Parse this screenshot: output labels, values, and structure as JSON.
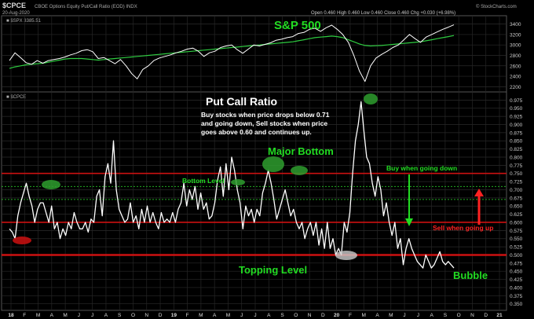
{
  "header": {
    "symbol": "$CPCE",
    "description": "CBOE Options Equity Put/Call Ratio (EOD)  INDX",
    "brand": "© StockCharts.com",
    "date": "20-Aug-2020",
    "ohlc": "Open 0.460  High 0.460  Low 0.460  Close 0.460  Chg +0.030 (+6.98%)",
    "spx_readout": "■ $SPX 3385.51",
    "cpce_label": "■ $CPCE"
  },
  "annotations": {
    "sp500": "S&P 500",
    "title": "Put Call Ratio",
    "subtitle_lines": [
      "Buy stocks when price drops below 0.71",
      "and going down, Sell stocks when price",
      "goes above 0.60 and continues up."
    ],
    "major_bottom": "Major Bottom",
    "bottom_level": "Bottom Level",
    "buy_going_down": "Buy when going down",
    "sell_going_up": "Sell when going up",
    "topping_level": "Topping Level",
    "bubble": "Bubble"
  },
  "colors": {
    "background": "#000000",
    "price_line": "#ffffff",
    "moving_average": "#2ecc40",
    "annotation_green": "#22dd22",
    "level_red": "#cc1111",
    "sell_red": "#ff2222"
  },
  "chart_data": [
    {
      "type": "line",
      "title": "S&P 500",
      "ylim": [
        2100,
        3560
      ],
      "yticks": [
        2200,
        2400,
        2600,
        2800,
        3000,
        3200,
        3400
      ],
      "x_ticks": [
        "18",
        "F",
        "M",
        "A",
        "M",
        "J",
        "J",
        "A",
        "S",
        "O",
        "N",
        "D",
        "19",
        "F",
        "M",
        "A",
        "M",
        "J",
        "J",
        "A",
        "S",
        "O",
        "N",
        "D",
        "20",
        "F",
        "M",
        "A",
        "M",
        "J",
        "J",
        "A",
        "S",
        "O",
        "N",
        "D",
        "21"
      ],
      "series": [
        {
          "values": [
            2700,
            2850,
            2760,
            2660,
            2630,
            2700,
            2650,
            2700,
            2720,
            2740,
            2770,
            2810,
            2840,
            2890,
            2910,
            2870,
            2740,
            2760,
            2700,
            2640,
            2720,
            2600,
            2450,
            2350,
            2530,
            2600,
            2700,
            2750,
            2780,
            2810,
            2850,
            2880,
            2920,
            2940,
            2880,
            2780,
            2850,
            2880,
            2950,
            2980,
            3000,
            2910,
            2840,
            2920,
            3000,
            2980,
            3010,
            3040,
            3090,
            3110,
            3140,
            3160,
            3220,
            3240,
            3300,
            3320,
            3260,
            3330,
            3380,
            3300,
            3200,
            3050,
            2800,
            2500,
            2300,
            2600,
            2750,
            2820,
            2880,
            2950,
            3000,
            3100,
            3200,
            3120,
            3050,
            3150,
            3200,
            3250,
            3300,
            3340,
            3385
          ]
        },
        {
          "values": [
            2550,
            2580,
            2600,
            2620,
            2630,
            2640,
            2650,
            2670,
            2690,
            2710,
            2730,
            2740,
            2740,
            2740,
            2730,
            2720,
            2710,
            2720,
            2730,
            2740,
            2750,
            2760,
            2770,
            2780,
            2790,
            2800,
            2810,
            2820,
            2830,
            2840,
            2850,
            2860,
            2870,
            2880,
            2890,
            2900,
            2910,
            2920,
            2930,
            2940,
            2950,
            2960,
            2970,
            2980,
            2990,
            3000,
            3010,
            3020,
            3030,
            3040,
            3050,
            3060,
            3080,
            3100,
            3120,
            3140,
            3150,
            3160,
            3170,
            3160,
            3140,
            3100,
            3060,
            3020,
            2990,
            2980,
            2985,
            2990,
            3000,
            3010,
            3020,
            3030,
            3040,
            3050,
            3060,
            3080,
            3100,
            3120,
            3140,
            3160,
            3180
          ]
        }
      ]
    },
    {
      "type": "line",
      "ylim": [
        0.33,
        1.0
      ],
      "yticks": [
        0.35,
        0.375,
        0.4,
        0.425,
        0.45,
        0.475,
        0.5,
        0.525,
        0.55,
        0.575,
        0.6,
        0.625,
        0.65,
        0.675,
        0.7,
        0.725,
        0.75,
        0.775,
        0.8,
        0.825,
        0.85,
        0.875,
        0.9,
        0.925,
        0.95,
        0.975
      ],
      "reference_lines": [
        0.75,
        0.6,
        0.5
      ],
      "dotted_lines": [
        0.71,
        0.67
      ],
      "series": [
        {
          "values": [
            0.58,
            0.57,
            0.55,
            0.62,
            0.66,
            0.69,
            0.72,
            0.68,
            0.65,
            0.6,
            0.64,
            0.66,
            0.66,
            0.63,
            0.6,
            0.65,
            0.58,
            0.6,
            0.55,
            0.58,
            0.56,
            0.6,
            0.58,
            0.63,
            0.6,
            0.58,
            0.58,
            0.6,
            0.57,
            0.61,
            0.6,
            0.68,
            0.7,
            0.62,
            0.74,
            0.78,
            0.72,
            0.85,
            0.7,
            0.64,
            0.62,
            0.6,
            0.61,
            0.66,
            0.6,
            0.62,
            0.58,
            0.64,
            0.6,
            0.65,
            0.6,
            0.63,
            0.6,
            0.58,
            0.63,
            0.6,
            0.61,
            0.6,
            0.63,
            0.6,
            0.64,
            0.66,
            0.72,
            0.65,
            0.7,
            0.67,
            0.71,
            0.64,
            0.69,
            0.64,
            0.66,
            0.61,
            0.62,
            0.66,
            0.73,
            0.77,
            0.68,
            0.78,
            0.7,
            0.8,
            0.76,
            0.7,
            0.66,
            0.58,
            0.65,
            0.62,
            0.64,
            0.6,
            0.64,
            0.62,
            0.69,
            0.72,
            0.76,
            0.72,
            0.67,
            0.61,
            0.64,
            0.67,
            0.7,
            0.66,
            0.62,
            0.64,
            0.6,
            0.58,
            0.6,
            0.55,
            0.58,
            0.6,
            0.56,
            0.6,
            0.53,
            0.58,
            0.52,
            0.6,
            0.52,
            0.55,
            0.5,
            0.52,
            0.5,
            0.6,
            0.57,
            0.63,
            0.75,
            0.85,
            0.9,
            0.97,
            0.88,
            0.8,
            0.78,
            0.72,
            0.68,
            0.74,
            0.7,
            0.62,
            0.66,
            0.6,
            0.56,
            0.6,
            0.52,
            0.55,
            0.47,
            0.52,
            0.55,
            0.52,
            0.5,
            0.48,
            0.47,
            0.46,
            0.5,
            0.48,
            0.46,
            0.47,
            0.49,
            0.51,
            0.48,
            0.47,
            0.48,
            0.47,
            0.46
          ]
        }
      ]
    }
  ]
}
